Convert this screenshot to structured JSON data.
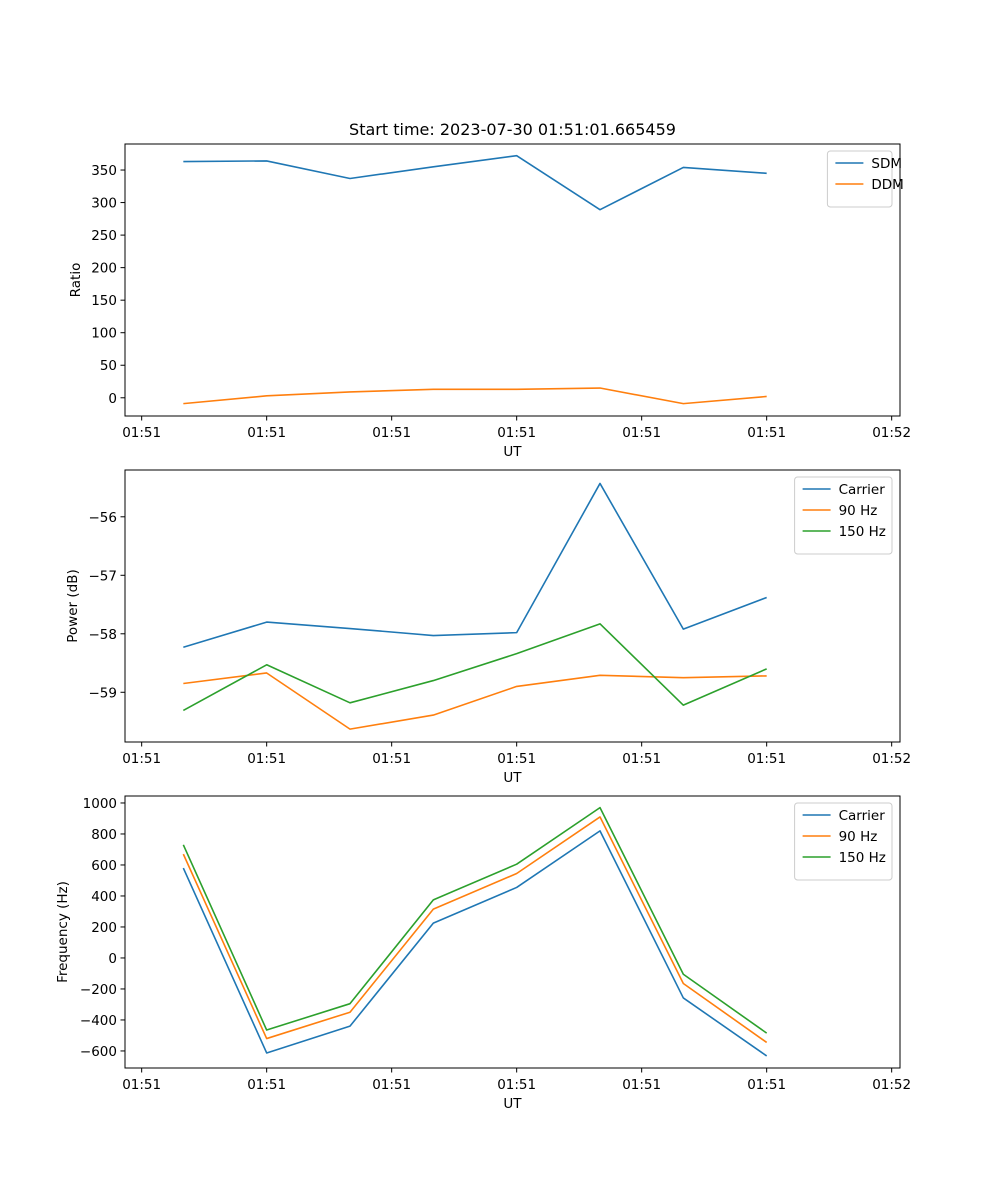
{
  "chart_data": [
    {
      "type": "line",
      "title": "Start time: 2023-07-30 01:51:01.665459",
      "xlabel": "UT",
      "ylabel": "Ratio",
      "x": [
        1,
        2,
        3,
        4,
        5,
        6,
        7,
        8
      ],
      "xlim": [
        0.3,
        9.6
      ],
      "xticks": [
        0.5,
        2,
        3.5,
        5,
        6.5,
        8,
        9.5
      ],
      "xticklabels": [
        "01:51",
        "01:51",
        "01:51",
        "01:51",
        "01:51",
        "01:51",
        "01:52"
      ],
      "ylim": [
        -28,
        390
      ],
      "yticks": [
        0,
        50,
        100,
        150,
        200,
        250,
        300,
        350
      ],
      "legend_position": "top-right",
      "series": [
        {
          "name": "SDM",
          "color": "#1f77b4",
          "values": [
            363,
            364,
            337,
            355,
            372,
            289,
            354,
            345
          ]
        },
        {
          "name": "DDM",
          "color": "#ff7f0e",
          "values": [
            -9,
            3,
            9,
            13,
            13,
            15,
            -9,
            2
          ]
        }
      ]
    },
    {
      "type": "line",
      "title": "",
      "xlabel": "UT",
      "ylabel": "Power (dB)",
      "x": [
        1,
        2,
        3,
        4,
        5,
        6,
        7,
        8
      ],
      "xlim": [
        0.3,
        9.6
      ],
      "xticks": [
        0.5,
        2,
        3.5,
        5,
        6.5,
        8,
        9.5
      ],
      "xticklabels": [
        "01:51",
        "01:51",
        "01:51",
        "01:51",
        "01:51",
        "01:51",
        "01:52"
      ],
      "ylim": [
        -59.85,
        -55.2
      ],
      "yticks": [
        -59,
        -58,
        -57,
        -56
      ],
      "legend_position": "top-right",
      "series": [
        {
          "name": "Carrier",
          "color": "#1f77b4",
          "values": [
            -58.23,
            -57.8,
            -57.91,
            -58.03,
            -57.98,
            -55.43,
            -57.92,
            -57.38
          ]
        },
        {
          "name": "90 Hz",
          "color": "#ff7f0e",
          "values": [
            -58.85,
            -58.67,
            -59.63,
            -59.39,
            -58.9,
            -58.71,
            -58.75,
            -58.72
          ]
        },
        {
          "name": "150 Hz",
          "color": "#2ca02c",
          "values": [
            -59.31,
            -58.53,
            -59.18,
            -58.8,
            -58.34,
            -57.83,
            -59.22,
            -58.6
          ]
        }
      ]
    },
    {
      "type": "line",
      "title": "",
      "xlabel": "UT",
      "ylabel": "Frequency (Hz)",
      "x": [
        1,
        2,
        3,
        4,
        5,
        6,
        7,
        8
      ],
      "xlim": [
        0.3,
        9.6
      ],
      "xticks": [
        0.5,
        2,
        3.5,
        5,
        6.5,
        8,
        9.5
      ],
      "xticklabels": [
        "01:51",
        "01:51",
        "01:51",
        "01:51",
        "01:51",
        "01:51",
        "01:52"
      ],
      "ylim": [
        -710,
        1045
      ],
      "yticks": [
        -600,
        -400,
        -200,
        0,
        200,
        400,
        600,
        800,
        1000
      ],
      "legend_position": "top-right",
      "series": [
        {
          "name": "Carrier",
          "color": "#1f77b4",
          "values": [
            580,
            -613,
            -440,
            225,
            455,
            820,
            -258,
            -632
          ]
        },
        {
          "name": "90 Hz",
          "color": "#ff7f0e",
          "values": [
            670,
            -520,
            -350,
            315,
            545,
            910,
            -165,
            -545
          ]
        },
        {
          "name": "150 Hz",
          "color": "#2ca02c",
          "values": [
            730,
            -465,
            -295,
            375,
            605,
            970,
            -105,
            -485
          ]
        }
      ]
    }
  ]
}
